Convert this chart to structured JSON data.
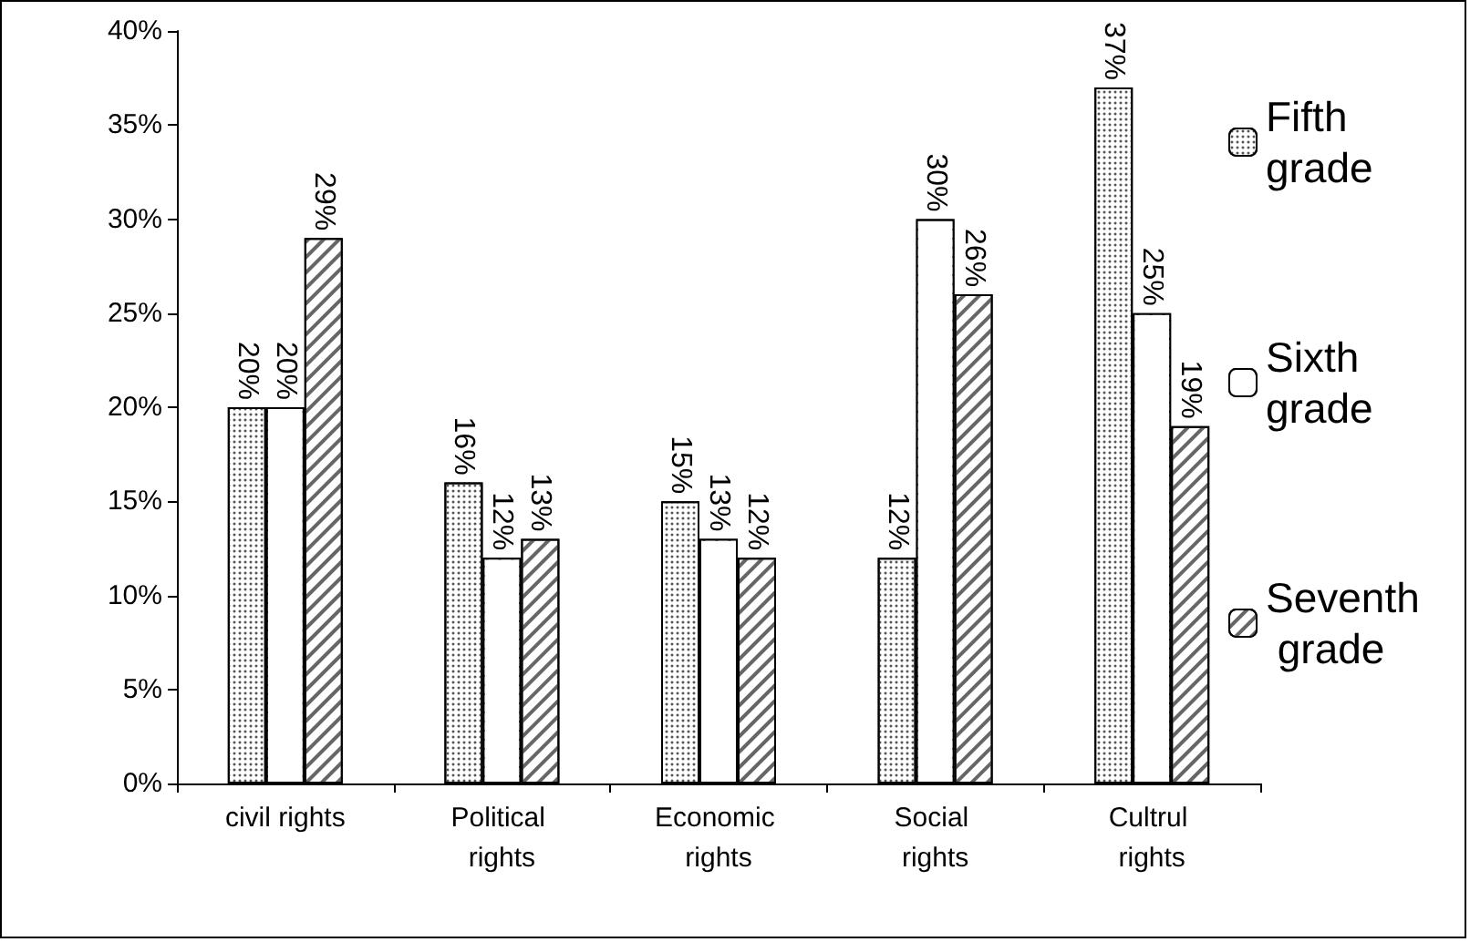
{
  "chart_data": {
    "type": "bar",
    "categories": [
      "civil rights",
      "Political rights",
      "Economic rights",
      "Social rights",
      "Cultrul rights"
    ],
    "series": [
      {
        "name": "Fifth grade",
        "color": "#ffffff",
        "values": [
          20,
          16,
          15,
          12,
          37
        ],
        "value_labels": [
          "20%",
          "16%",
          "15%",
          "12%",
          "37%"
        ]
      },
      {
        "name": "Sixth grade",
        "color": "#ffffff",
        "values": [
          20,
          12,
          13,
          30,
          25
        ],
        "value_labels": [
          "20%",
          "12%",
          "13%",
          "30%",
          "25%"
        ]
      },
      {
        "name": "Seventh grade",
        "color": "#ffffff",
        "values": [
          29,
          13,
          12,
          26,
          19
        ],
        "value_labels": [
          "29%",
          "13%",
          "12%",
          "26%",
          "19%"
        ]
      }
    ],
    "ylim": [
      0,
      40
    ],
    "yticks": [
      {
        "value": 0,
        "label": "0%"
      },
      {
        "value": 5,
        "label": "5%"
      },
      {
        "value": 10,
        "label": "10%"
      },
      {
        "value": 15,
        "label": "15%"
      },
      {
        "value": 20,
        "label": "20%"
      },
      {
        "value": 25,
        "label": "25%"
      },
      {
        "value": 30,
        "label": "30%"
      },
      {
        "value": 35,
        "label": "35%"
      },
      {
        "value": 40,
        "label": "40%"
      }
    ],
    "grid": false,
    "legend": "right"
  }
}
